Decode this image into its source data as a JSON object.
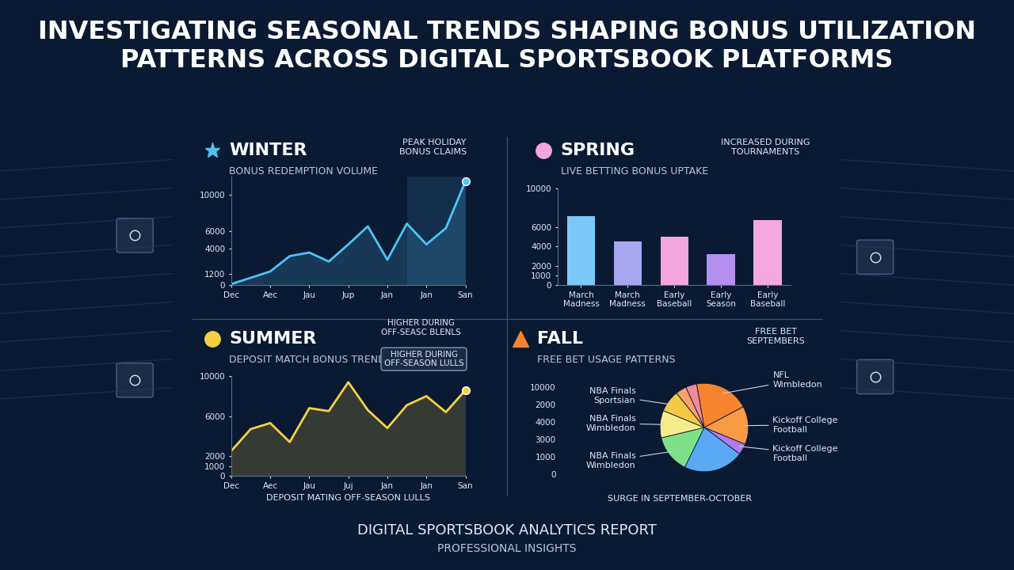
{
  "title": "INVESTIGATING SEASONAL TRENDS SHAPING BONUS UTILIZATION PATTERNS ACROSS DIGITAL SPORTSBOOK PLATFORMS",
  "footer": "DIGITAL SPORTSBOOK ANALYTICS REPORT",
  "footer_subtitle": "PROFESSIONAL INSIGHTS",
  "chart_data": [
    {
      "type": "line",
      "title": "WINTER",
      "subtitle": "BONUS REDEMPTION VOLUME",
      "annotations": [
        "PEAK HOLIDAY\nBONUS CLAIMS"
      ],
      "x": [
        0,
        0.5,
        1,
        1.5,
        2,
        2.5,
        3,
        3.5,
        4,
        4.5,
        5,
        5.5,
        6
      ],
      "values": [
        100,
        800,
        1500,
        3200,
        3600,
        2600,
        4500,
        6500,
        2800,
        6800,
        4500,
        6300,
        11500
      ],
      "color": "#4fc3f7",
      "xlim": [
        0,
        6
      ],
      "xticks": [
        {
          "value": 0,
          "label": "Dec"
        },
        {
          "value": 1,
          "label": "Aec"
        },
        {
          "value": 2,
          "label": "Jau"
        },
        {
          "value": 3,
          "label": "Jup"
        },
        {
          "value": 4,
          "label": "Jan"
        },
        {
          "value": 5,
          "label": "Jan"
        },
        {
          "value": 6,
          "label": "San"
        }
      ],
      "ylim": [
        0,
        12000
      ],
      "yticks": [
        0,
        1200,
        4000,
        6000,
        10000
      ]
    },
    {
      "type": "bar",
      "title": "SPRING",
      "subtitle": "LIVE BETTING BONUS UPTAKE",
      "annotations": [
        "INCREASED DURING\nTOURNAMENTS"
      ],
      "categories": [
        "March Madness",
        "March Madness",
        "Early Baseball",
        "Early Season",
        "Early Baseball"
      ],
      "values": [
        7100,
        4500,
        5000,
        3200,
        6700
      ],
      "colors": [
        "#7cc8f8",
        "#a9a6f0",
        "#f3a6d9",
        "#b38ff0",
        "#f5a8dc"
      ],
      "ylim": [
        0,
        10000
      ],
      "yticks": [
        0,
        1000,
        2000,
        4000,
        6000,
        10000
      ]
    },
    {
      "type": "line",
      "title": "SUMMER",
      "subtitle": "DEPOSIT MATCH BONUS TRENDS",
      "annotations": [
        "HIGHER DURING\nOFF-SEASC BLENLS",
        "HIGHER DURING\nOFF-SEASON LULLS"
      ],
      "x_label": "DEPOSIT MATING OFF-SEASON LULLS",
      "x": [
        0,
        0.5,
        1,
        1.5,
        2,
        2.5,
        3,
        3.5,
        4,
        4.5,
        5,
        5.5,
        6
      ],
      "values": [
        2500,
        4700,
        5300,
        3400,
        6800,
        6500,
        9400,
        6600,
        4800,
        7100,
        8000,
        6400,
        8600
      ],
      "color": "#f5d142",
      "xlim": [
        0,
        6
      ],
      "xticks": [
        {
          "value": 0,
          "label": "Dec"
        },
        {
          "value": 1,
          "label": "Aec"
        },
        {
          "value": 2,
          "label": "Jau"
        },
        {
          "value": 3,
          "label": "Juj"
        },
        {
          "value": 4,
          "label": "Jan"
        },
        {
          "value": 5,
          "label": "Jan"
        },
        {
          "value": 6,
          "label": "San"
        }
      ],
      "ylim": [
        0,
        10000
      ],
      "yticks": [
        0,
        1000,
        2000,
        6000,
        10000
      ]
    },
    {
      "type": "pie",
      "title": "FALL",
      "subtitle": "FREE BET USAGE PATTERNS",
      "annotations": [
        "FREE BET\nSEPTEMBERS",
        "SURGE IN SEPTEMBER-OCTOBER"
      ],
      "axis_labels": [
        "10000",
        "2000",
        "4000",
        "3000",
        "1000",
        "0"
      ],
      "categories": [
        "NFL\nWimbledon",
        "Kickoff College\nFootball",
        "Kickoff College\nFootball",
        null,
        "NBA Finals\nWimbledon",
        "NBA Finals\nWimbledon",
        "NBA Finals\nSportsian",
        null,
        null
      ],
      "values": [
        20,
        14,
        4,
        22,
        14,
        10,
        8,
        4,
        4
      ],
      "colors": [
        "#f7842f",
        "#f99a45",
        "#b07cf0",
        "#5aa9f5",
        "#7fe08a",
        "#f7ec8a",
        "#f5c842",
        "#f7a26a",
        "#f08a9a"
      ]
    }
  ]
}
